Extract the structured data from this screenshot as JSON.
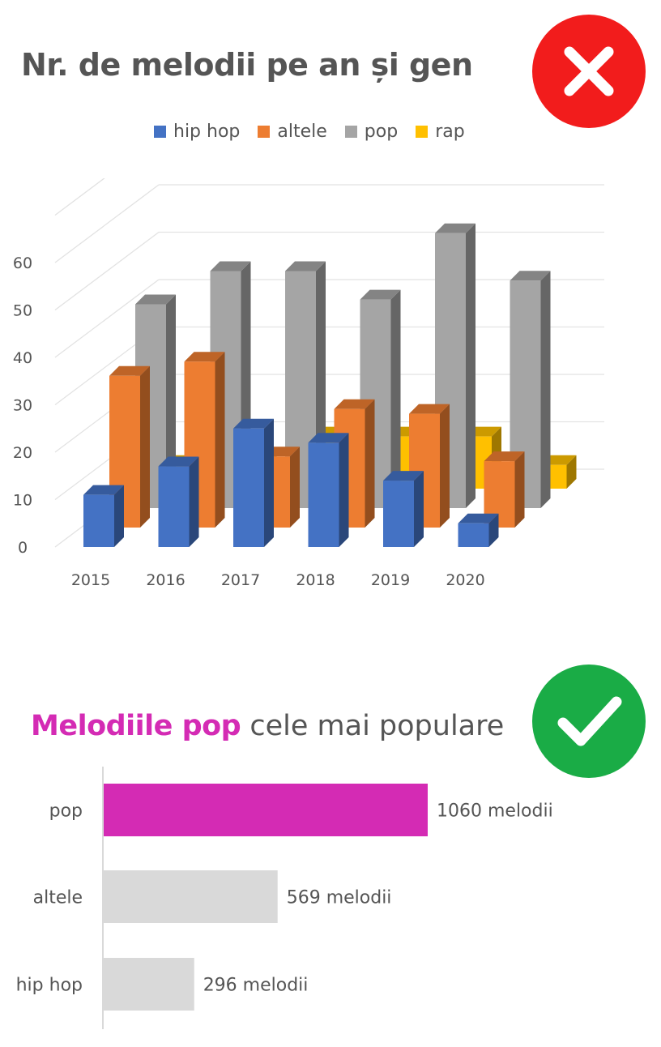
{
  "top": {
    "title": "Nr. de melodii pe an și gen",
    "badge_icon": "close-icon",
    "badge_color": "#f21c1c"
  },
  "bottom": {
    "title_highlight": "Melodiile pop",
    "title_rest": "cele mai populare",
    "badge_icon": "checkmark-icon",
    "badge_color": "#1aac46",
    "highlight_color": "#d42bb4"
  },
  "chart_data": [
    {
      "type": "bar",
      "variant": "3d-clustered-column",
      "title": "Nr. de melodii pe an și gen",
      "categories": [
        "2015",
        "2016",
        "2017",
        "2018",
        "2019",
        "2020"
      ],
      "ylim": [
        0,
        60
      ],
      "yticks": [
        "0",
        "10",
        "20",
        "30",
        "40",
        "50",
        "60"
      ],
      "grid": true,
      "legend_position": "top",
      "series": [
        {
          "name": "hip hop",
          "color": "#4472c4",
          "values": [
            11,
            17,
            25,
            22,
            14,
            5
          ]
        },
        {
          "name": "altele",
          "color": "#ed7d31",
          "values": [
            32,
            35,
            15,
            25,
            24,
            14
          ]
        },
        {
          "name": "pop",
          "color": "#a5a5a5",
          "values": [
            43,
            50,
            50,
            44,
            58,
            48
          ]
        },
        {
          "name": "rap",
          "color": "#ffc000",
          "values": [
            5,
            5,
            11,
            11,
            11,
            5
          ]
        }
      ]
    },
    {
      "type": "bar",
      "orientation": "horizontal",
      "title": "Melodiile pop cele mai populare",
      "categories": [
        "pop",
        "altele",
        "hip hop"
      ],
      "values": [
        1060,
        569,
        296
      ],
      "value_labels": [
        "1060 melodii",
        "569 melodii",
        "296 melodii"
      ],
      "colors": [
        "#d42bb4",
        "#d9d9d9",
        "#d9d9d9"
      ],
      "xlim": [
        0,
        1060
      ]
    }
  ]
}
